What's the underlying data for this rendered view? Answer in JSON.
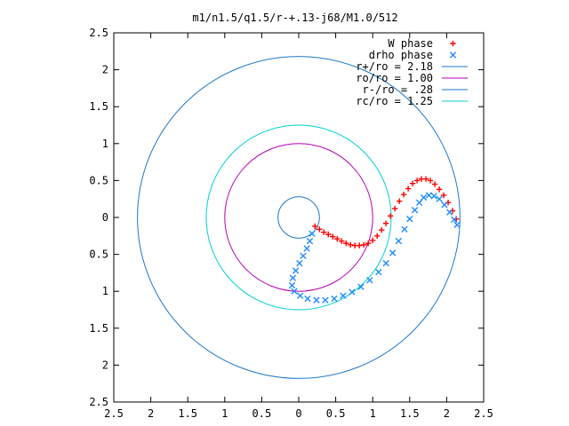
{
  "chart_data": {
    "type": "scatter",
    "title": "m1/n1.5/q1.5/r-+.13-j68/M1.0/512",
    "xlabel": "",
    "ylabel": "",
    "xlim": [
      -2.5,
      2.5
    ],
    "ylim": [
      -2.5,
      2.5
    ],
    "x_ticks": [
      -2.5,
      -2,
      -1.5,
      -1,
      -0.5,
      0,
      0.5,
      1,
      1.5,
      2,
      2.5
    ],
    "x_tick_labels": [
      "2.5",
      "2",
      "1.5",
      "1",
      "0.5",
      "0",
      "0.5",
      "1",
      "1.5",
      "2",
      "2.5"
    ],
    "y_ticks": [
      2.5,
      2,
      1.5,
      1,
      0.5,
      0,
      -0.5,
      -1,
      -1.5,
      -2,
      -2.5
    ],
    "y_tick_labels": [
      "2.5",
      "2",
      "1.5",
      "1",
      "0.5",
      "0",
      "0.5",
      "1",
      "1.5",
      "2",
      "2.5"
    ],
    "grid": false,
    "legend_position": "top-right",
    "circles": [
      {
        "name": "r+/ro = 2.18",
        "radius": 2.18,
        "color": "#1f78c8"
      },
      {
        "name": "ro/ro = 1.00",
        "radius": 1.0,
        "color": "#b400b4"
      },
      {
        "name": "r-/ro = .28",
        "radius": 0.28,
        "color": "#1f78c8"
      },
      {
        "name": "rc/ro = 1.25",
        "radius": 1.25,
        "color": "#00d0d0"
      }
    ],
    "series": [
      {
        "name": "W phase",
        "marker": "+",
        "color": "#ff0000",
        "points": [
          [
            0.22,
            -0.12
          ],
          [
            0.28,
            -0.16
          ],
          [
            0.34,
            -0.2
          ],
          [
            0.4,
            -0.23
          ],
          [
            0.46,
            -0.26
          ],
          [
            0.52,
            -0.29
          ],
          [
            0.58,
            -0.32
          ],
          [
            0.64,
            -0.35
          ],
          [
            0.7,
            -0.37
          ],
          [
            0.76,
            -0.38
          ],
          [
            0.82,
            -0.38
          ],
          [
            0.88,
            -0.37
          ],
          [
            0.94,
            -0.35
          ],
          [
            1.0,
            -0.31
          ],
          [
            1.06,
            -0.25
          ],
          [
            1.12,
            -0.17
          ],
          [
            1.18,
            -0.08
          ],
          [
            1.24,
            0.02
          ],
          [
            1.3,
            0.12
          ],
          [
            1.36,
            0.22
          ],
          [
            1.42,
            0.31
          ],
          [
            1.48,
            0.39
          ],
          [
            1.54,
            0.46
          ],
          [
            1.6,
            0.5
          ],
          [
            1.66,
            0.52
          ],
          [
            1.72,
            0.52
          ],
          [
            1.78,
            0.5
          ],
          [
            1.84,
            0.45
          ],
          [
            1.9,
            0.38
          ],
          [
            1.96,
            0.3
          ],
          [
            2.02,
            0.2
          ],
          [
            2.08,
            0.09
          ],
          [
            2.13,
            -0.02
          ]
        ]
      },
      {
        "name": "drho phase",
        "marker": "x",
        "color": "#1f8cff",
        "points": [
          [
            0.18,
            -0.22
          ],
          [
            0.15,
            -0.32
          ],
          [
            0.11,
            -0.42
          ],
          [
            0.06,
            -0.52
          ],
          [
            0.01,
            -0.62
          ],
          [
            -0.04,
            -0.72
          ],
          [
            -0.08,
            -0.82
          ],
          [
            -0.09,
            -0.92
          ],
          [
            -0.06,
            -1.0
          ],
          [
            0.02,
            -1.06
          ],
          [
            0.12,
            -1.1
          ],
          [
            0.24,
            -1.12
          ],
          [
            0.36,
            -1.12
          ],
          [
            0.48,
            -1.1
          ],
          [
            0.6,
            -1.06
          ],
          [
            0.72,
            -1.01
          ],
          [
            0.84,
            -0.94
          ],
          [
            0.96,
            -0.85
          ],
          [
            1.08,
            -0.74
          ],
          [
            1.18,
            -0.62
          ],
          [
            1.27,
            -0.48
          ],
          [
            1.35,
            -0.32
          ],
          [
            1.43,
            -0.16
          ],
          [
            1.5,
            -0.02
          ],
          [
            1.57,
            0.1
          ],
          [
            1.63,
            0.2
          ],
          [
            1.69,
            0.27
          ],
          [
            1.76,
            0.3
          ],
          [
            1.83,
            0.29
          ],
          [
            1.9,
            0.25
          ],
          [
            1.97,
            0.17
          ],
          [
            2.04,
            0.07
          ],
          [
            2.1,
            -0.03
          ],
          [
            2.14,
            -0.1
          ]
        ]
      }
    ]
  }
}
